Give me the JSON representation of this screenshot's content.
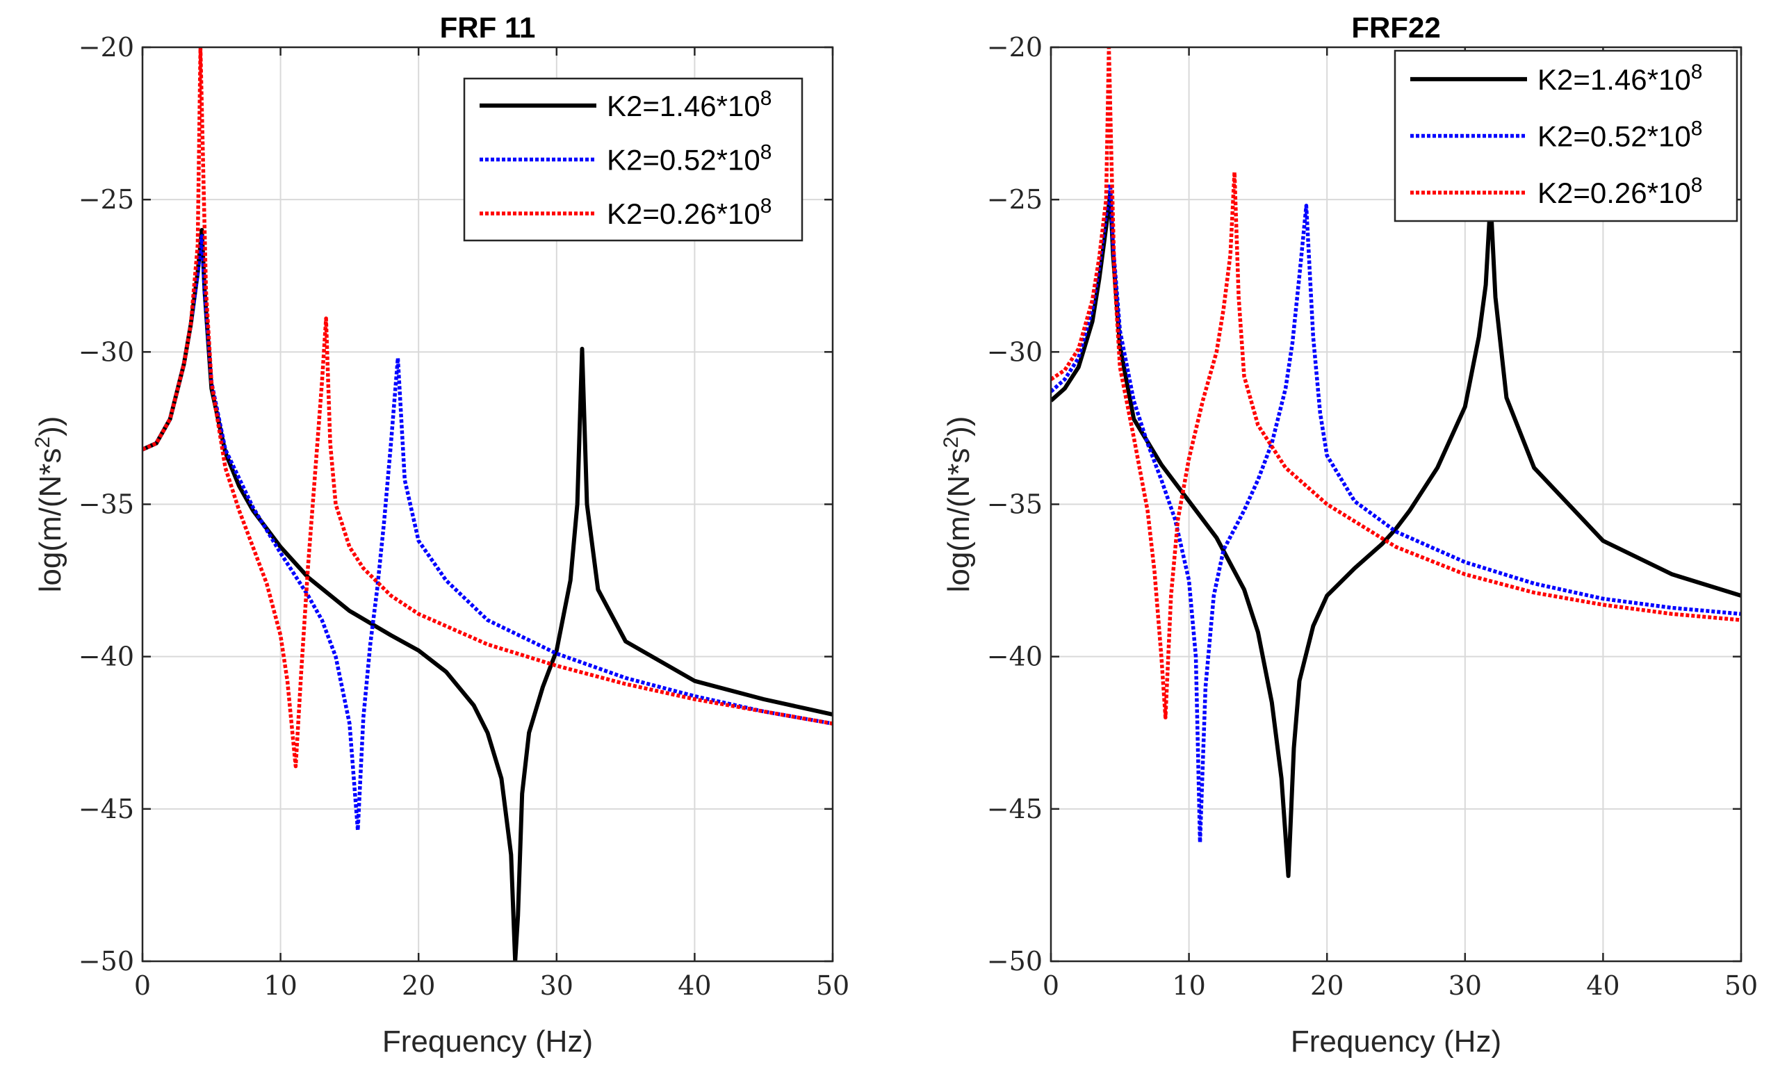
{
  "chart_data": [
    {
      "type": "line",
      "title": "FRF  11",
      "xlabel": "Frequency (Hz)",
      "ylabel": "log(m/(N*s^2))",
      "xlim": [
        0,
        50
      ],
      "ylim": [
        -50,
        -20
      ],
      "xticks": [
        "0",
        "10",
        "20",
        "30",
        "40",
        "50"
      ],
      "yticks": [
        "−50",
        "−45",
        "−40",
        "−35",
        "−30",
        "−25",
        "−20"
      ],
      "grid": true,
      "legend_position": "top-right",
      "series": [
        {
          "name": "K2=1.46*10^8",
          "color": "#000000",
          "dash": "solid",
          "x": [
            0,
            1,
            2,
            3,
            3.5,
            4,
            4.3,
            4.5,
            5,
            6,
            7,
            8,
            10,
            12,
            15,
            18,
            20,
            22,
            24,
            25,
            26,
            26.7,
            27,
            27.2,
            27.5,
            28,
            29,
            30,
            31,
            31.5,
            31.85,
            32.2,
            33,
            35,
            40,
            45,
            50
          ],
          "y": [
            -33.2,
            -33.0,
            -32.2,
            -30.4,
            -29.1,
            -27.4,
            -26.0,
            -28.0,
            -31.2,
            -33.3,
            -34.4,
            -35.2,
            -36.4,
            -37.4,
            -38.5,
            -39.3,
            -39.8,
            -40.5,
            -41.6,
            -42.5,
            -44.0,
            -46.5,
            -50.0,
            -48.5,
            -44.5,
            -42.5,
            -41.0,
            -39.8,
            -37.5,
            -35.0,
            -29.9,
            -35.0,
            -37.8,
            -39.5,
            -40.8,
            -41.4,
            -41.9
          ]
        },
        {
          "name": "K2=0.52*10^8",
          "color": "#0000ff",
          "dash": "dotted",
          "x": [
            0,
            1,
            2,
            3,
            3.5,
            4,
            4.3,
            4.5,
            5,
            6,
            8,
            10,
            12,
            13,
            14,
            15,
            15.6,
            16,
            16.5,
            17,
            17.5,
            18,
            18.5,
            19,
            20,
            22,
            25,
            30,
            35,
            40,
            45,
            50
          ],
          "y": [
            -33.2,
            -33.0,
            -32.2,
            -30.4,
            -29.1,
            -27.4,
            -26.2,
            -28.0,
            -31.0,
            -33.2,
            -35.1,
            -36.6,
            -38.0,
            -38.8,
            -40.0,
            -42.2,
            -45.7,
            -42.0,
            -39.6,
            -37.8,
            -35.6,
            -33.0,
            -30.2,
            -34.2,
            -36.2,
            -37.5,
            -38.8,
            -39.9,
            -40.7,
            -41.3,
            -41.8,
            -42.2
          ]
        },
        {
          "name": "K2=0.26*10^8",
          "color": "#ff0000",
          "dash": "dotted",
          "x": [
            0,
            1,
            2,
            3,
            3.5,
            4,
            4.2,
            4.4,
            4.6,
            5,
            6,
            7,
            8,
            9,
            10,
            10.5,
            11.1,
            11.5,
            12,
            12.5,
            13,
            13.3,
            13.6,
            14,
            15,
            16,
            18,
            20,
            25,
            30,
            35,
            40,
            45,
            50
          ],
          "y": [
            -33.2,
            -33.0,
            -32.2,
            -30.4,
            -29.1,
            -26.5,
            -20.0,
            -24.0,
            -28.0,
            -31.0,
            -33.8,
            -35.2,
            -36.4,
            -37.6,
            -39.3,
            -40.8,
            -43.6,
            -40.5,
            -37.0,
            -34.0,
            -31.0,
            -28.9,
            -33.0,
            -35.0,
            -36.4,
            -37.1,
            -38.0,
            -38.6,
            -39.6,
            -40.3,
            -40.9,
            -41.4,
            -41.8,
            -42.2
          ]
        }
      ]
    },
    {
      "type": "line",
      "title": "FRF22",
      "xlabel": "Frequency (Hz)",
      "ylabel": "log(m/(N*s^2))",
      "xlim": [
        0,
        50
      ],
      "ylim": [
        -50,
        -20
      ],
      "xticks": [
        "0",
        "10",
        "20",
        "30",
        "40",
        "50"
      ],
      "yticks": [
        "−50",
        "−45",
        "−40",
        "−35",
        "−30",
        "−25",
        "−20"
      ],
      "grid": true,
      "legend_position": "top-right",
      "series": [
        {
          "name": "K2=1.46*10^8",
          "color": "#000000",
          "dash": "solid",
          "x": [
            0,
            1,
            2,
            3,
            3.5,
            4,
            4.3,
            4.5,
            5,
            6,
            8,
            10,
            12,
            14,
            15,
            16,
            16.7,
            17.2,
            17.6,
            18,
            19,
            20,
            22,
            24,
            25,
            26,
            28,
            30,
            31,
            31.5,
            31.85,
            32.2,
            33,
            35,
            40,
            45,
            50
          ],
          "y": [
            -31.6,
            -31.2,
            -30.5,
            -29.0,
            -27.6,
            -25.9,
            -24.8,
            -26.8,
            -29.8,
            -32.2,
            -33.7,
            -34.9,
            -36.1,
            -37.8,
            -39.2,
            -41.5,
            -44.0,
            -47.2,
            -43.0,
            -40.8,
            -39.0,
            -38.0,
            -37.1,
            -36.3,
            -35.8,
            -35.2,
            -33.8,
            -31.8,
            -29.5,
            -27.8,
            -25.0,
            -28.2,
            -31.5,
            -33.8,
            -36.2,
            -37.3,
            -38.0
          ]
        },
        {
          "name": "K2=0.52*10^8",
          "color": "#0000ff",
          "dash": "dotted",
          "x": [
            0,
            1,
            2,
            3,
            3.5,
            4,
            4.3,
            4.5,
            5,
            6,
            7,
            8,
            9,
            10,
            10.5,
            10.8,
            11.2,
            11.8,
            12.5,
            14,
            15,
            16,
            17,
            17.5,
            18,
            18.5,
            19,
            19.5,
            20,
            22,
            25,
            30,
            35,
            40,
            45,
            50
          ],
          "y": [
            -31.3,
            -30.9,
            -30.2,
            -28.6,
            -27.2,
            -25.5,
            -24.5,
            -26.5,
            -29.3,
            -31.6,
            -33.0,
            -34.2,
            -35.5,
            -37.5,
            -40.0,
            -46.1,
            -41.0,
            -38.0,
            -36.5,
            -35.2,
            -34.2,
            -33.0,
            -31.2,
            -29.7,
            -27.5,
            -25.2,
            -29.5,
            -32.0,
            -33.4,
            -34.9,
            -35.9,
            -36.9,
            -37.6,
            -38.1,
            -38.4,
            -38.6
          ]
        },
        {
          "name": "K2=0.26*10^8",
          "color": "#ff0000",
          "dash": "dotted",
          "x": [
            0,
            1,
            2,
            3,
            3.5,
            4,
            4.2,
            4.4,
            4.6,
            5,
            6,
            7,
            7.5,
            8,
            8.3,
            8.7,
            9.2,
            10,
            11,
            12,
            12.5,
            13,
            13.3,
            13.6,
            14,
            15,
            17,
            20,
            25,
            30,
            35,
            40,
            45,
            50
          ],
          "y": [
            -30.9,
            -30.6,
            -29.9,
            -28.3,
            -26.9,
            -25.0,
            -20.0,
            -24.0,
            -27.5,
            -30.5,
            -32.8,
            -35.2,
            -37.2,
            -40.0,
            -42.0,
            -38.0,
            -35.5,
            -33.5,
            -31.6,
            -30.0,
            -28.6,
            -26.8,
            -24.1,
            -28.2,
            -30.8,
            -32.4,
            -33.8,
            -35.0,
            -36.4,
            -37.3,
            -37.9,
            -38.3,
            -38.6,
            -38.8
          ]
        }
      ]
    }
  ]
}
